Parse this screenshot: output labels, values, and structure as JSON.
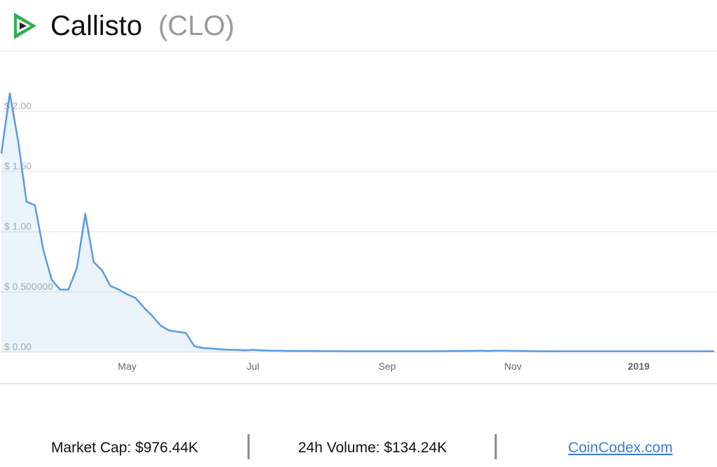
{
  "header": {
    "title": "Callisto",
    "ticker": "(CLO)"
  },
  "chart_data": {
    "type": "line",
    "categories": [
      null,
      null,
      null,
      null,
      null,
      null,
      null,
      null,
      null,
      null,
      null,
      null,
      null,
      null,
      null,
      "May",
      null,
      null,
      null,
      null,
      null,
      null,
      null,
      null,
      null,
      null,
      null,
      null,
      null,
      null,
      "Jul",
      null,
      null,
      null,
      null,
      null,
      null,
      null,
      null,
      null,
      null,
      null,
      null,
      null,
      null,
      null,
      "Sep",
      null,
      null,
      null,
      null,
      null,
      null,
      null,
      null,
      null,
      null,
      null,
      null,
      null,
      null,
      "Nov",
      null,
      null,
      null,
      null,
      null,
      null,
      null,
      null,
      null,
      null,
      null,
      null,
      null,
      null,
      "2019",
      null,
      null,
      null,
      null,
      null,
      null,
      null,
      null,
      null
    ],
    "series": [
      {
        "name": "CLO",
        "color": "#5b9ae0",
        "values": [
          1.65,
          2.15,
          1.75,
          1.25,
          1.22,
          0.85,
          0.6,
          0.52,
          0.52,
          0.7,
          1.15,
          0.75,
          0.68,
          0.55,
          0.52,
          0.48,
          0.45,
          0.37,
          0.3,
          0.22,
          0.18,
          0.17,
          0.16,
          0.05,
          0.035,
          0.03,
          0.025,
          0.02,
          0.02,
          0.015,
          0.02,
          0.015,
          0.013,
          0.012,
          0.011,
          0.01,
          0.01,
          0.01,
          0.009,
          0.009,
          0.009,
          0.008,
          0.008,
          0.008,
          0.008,
          0.008,
          0.008,
          0.008,
          0.008,
          0.008,
          0.008,
          0.008,
          0.009,
          0.009,
          0.01,
          0.01,
          0.011,
          0.012,
          0.011,
          0.012,
          0.012,
          0.011,
          0.01,
          0.009,
          0.008,
          0.008,
          0.007,
          0.007,
          0.007,
          0.007,
          0.007,
          0.007,
          0.007,
          0.007,
          0.007,
          0.007,
          0.007,
          0.007,
          0.007,
          0.007,
          0.007,
          0.007,
          0.007,
          0.007,
          0.007,
          0.007
        ]
      }
    ],
    "ylim": [
      0,
      2.5
    ],
    "yticks": [
      {
        "value": 0,
        "label": "$ 0.00"
      },
      {
        "value": 0.5,
        "label": "$ 0.500000"
      },
      {
        "value": 1,
        "label": "$ 1.00"
      },
      {
        "value": 1.5,
        "label": "$ 1.50"
      },
      {
        "value": 2,
        "label": "$ 2.00"
      }
    ],
    "grid": true
  },
  "footer": {
    "market_cap": "Market Cap: $976.44K",
    "volume": "24h Volume: $134.24K",
    "link": "CoinCodex.com"
  }
}
